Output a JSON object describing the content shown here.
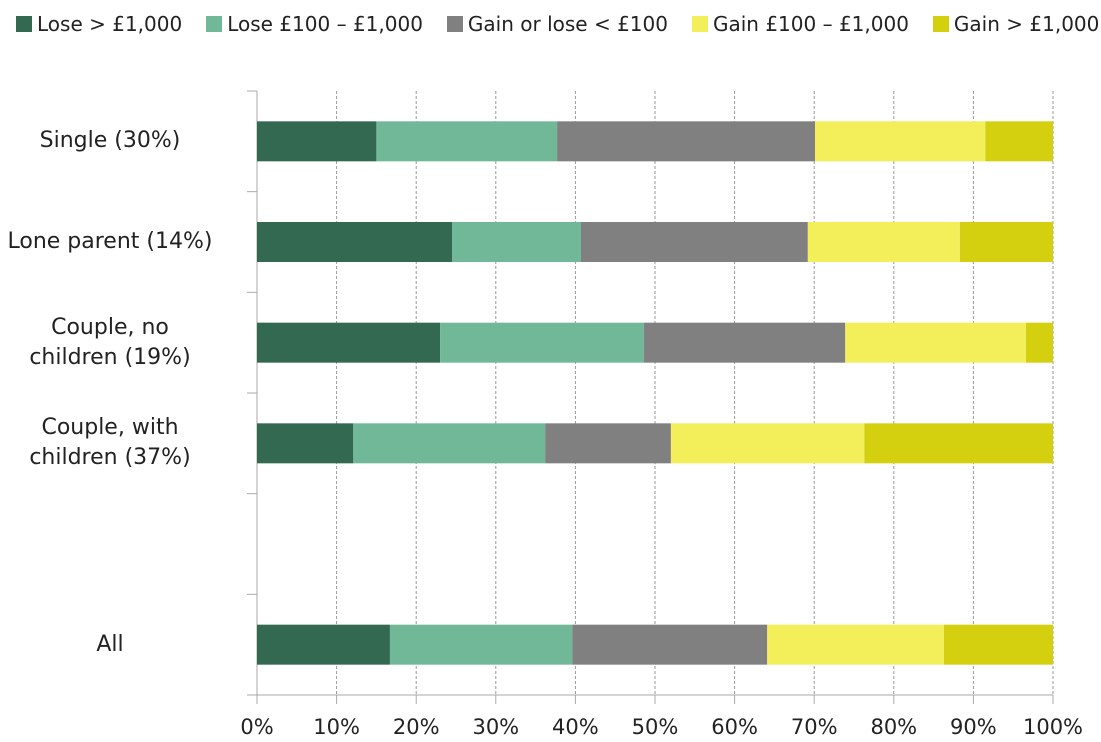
{
  "chart_data": {
    "type": "stacked-bar-horizontal",
    "categories": [
      "Single (30%)",
      "Lone parent (14%)",
      "Couple, no\nchildren (19%)",
      "Couple, with\nchildren (37%)",
      null,
      "All"
    ],
    "series": [
      {
        "name": "Lose > £1,000",
        "color": "#336950",
        "values": [
          15.0,
          24.5,
          23.0,
          12.1,
          null,
          16.7
        ]
      },
      {
        "name": "Lose £100 – £1,000",
        "color": "#71b898",
        "values": [
          22.7,
          16.2,
          25.6,
          24.1,
          null,
          22.9
        ]
      },
      {
        "name": "Gain or lose < £100",
        "color": "#808080",
        "values": [
          32.4,
          28.5,
          25.3,
          15.8,
          null,
          24.5
        ]
      },
      {
        "name": "Gain £100 – £1,000",
        "color": "#f2ef5b",
        "values": [
          21.4,
          19.1,
          22.7,
          24.3,
          null,
          22.2
        ]
      },
      {
        "name": "Gain > £1,000",
        "color": "#d4cf0f",
        "values": [
          8.5,
          11.7,
          3.4,
          23.7,
          null,
          13.7
        ]
      }
    ],
    "xlim": [
      0,
      100
    ],
    "xticks": [
      {
        "value": 0,
        "label": "0%"
      },
      {
        "value": 10,
        "label": "10%"
      },
      {
        "value": 20,
        "label": "20%"
      },
      {
        "value": 30,
        "label": "30%"
      },
      {
        "value": 40,
        "label": "40%"
      },
      {
        "value": 50,
        "label": "50%"
      },
      {
        "value": 60,
        "label": "60%"
      },
      {
        "value": 70,
        "label": "70%"
      },
      {
        "value": 80,
        "label": "80%"
      },
      {
        "value": 90,
        "label": "90%"
      },
      {
        "value": 100,
        "label": "100%"
      }
    ],
    "grid": true
  }
}
